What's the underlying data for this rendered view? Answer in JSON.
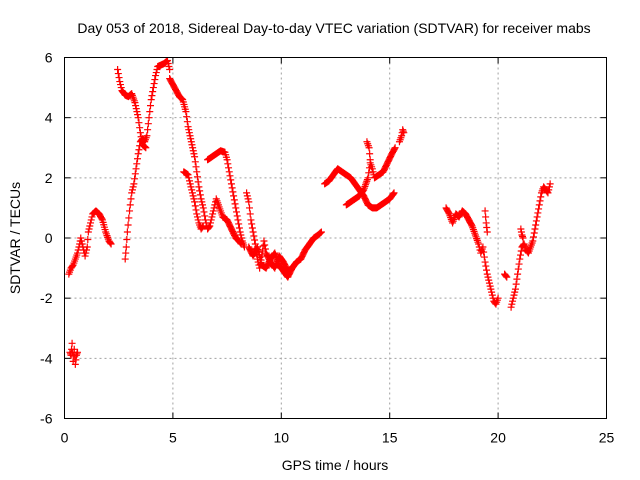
{
  "chart_data": {
    "type": "scatter",
    "title": "Day 053 of 2018, Sidereal Day-to-day VTEC variation (SDTVAR) for receiver mabs",
    "xlabel": "GPS time / hours",
    "ylabel": "SDTVAR / TECUs",
    "xlim": [
      0,
      25
    ],
    "ylim": [
      -6,
      6
    ],
    "xticks": [
      0,
      5,
      10,
      15,
      20,
      25
    ],
    "yticks": [
      -6,
      -4,
      -2,
      0,
      2,
      4,
      6
    ],
    "grid": true,
    "marker": "plus",
    "color": "#ff0000",
    "segments": [
      [
        [
          0.25,
          -3.8
        ],
        [
          0.3,
          -3.9
        ],
        [
          0.35,
          -3.5
        ],
        [
          0.4,
          -4.1
        ],
        [
          0.45,
          -3.7
        ],
        [
          0.5,
          -4.2
        ],
        [
          0.55,
          -3.9
        ],
        [
          0.6,
          -3.8
        ]
      ],
      [
        [
          0.2,
          -1.2
        ],
        [
          0.3,
          -1.0
        ],
        [
          0.4,
          -0.9
        ],
        [
          0.5,
          -0.7
        ],
        [
          0.6,
          -0.5
        ],
        [
          0.7,
          -0.2
        ],
        [
          0.75,
          0.0
        ],
        [
          0.85,
          -0.3
        ],
        [
          0.95,
          -0.6
        ],
        [
          1.05,
          -0.3
        ],
        [
          1.1,
          0.2
        ],
        [
          1.2,
          0.5
        ],
        [
          1.3,
          0.8
        ],
        [
          1.45,
          0.9
        ],
        [
          1.6,
          0.8
        ],
        [
          1.75,
          0.6
        ],
        [
          1.9,
          0.2
        ],
        [
          2.05,
          -0.1
        ],
        [
          2.15,
          -0.2
        ]
      ],
      [
        [
          2.8,
          -0.7
        ],
        [
          2.85,
          -0.3
        ],
        [
          2.9,
          0.2
        ],
        [
          3.0,
          0.9
        ],
        [
          3.1,
          1.5
        ],
        [
          3.2,
          1.8
        ],
        [
          3.3,
          2.3
        ],
        [
          3.4,
          2.8
        ],
        [
          3.5,
          3.2
        ],
        [
          3.6,
          3.3
        ],
        [
          3.7,
          3.2
        ],
        [
          3.8,
          3.4
        ],
        [
          3.9,
          4.0
        ],
        [
          4.0,
          4.6
        ],
        [
          4.1,
          5.0
        ],
        [
          4.2,
          5.4
        ],
        [
          4.3,
          5.7
        ],
        [
          4.45,
          5.75
        ],
        [
          4.6,
          5.8
        ],
        [
          4.75,
          5.9
        ],
        [
          4.85,
          5.6
        ]
      ],
      [
        [
          2.45,
          5.6
        ],
        [
          2.55,
          5.2
        ],
        [
          2.65,
          4.9
        ],
        [
          2.8,
          4.75
        ],
        [
          2.95,
          4.7
        ],
        [
          3.1,
          4.8
        ],
        [
          3.25,
          4.5
        ],
        [
          3.4,
          4.0
        ],
        [
          3.5,
          3.5
        ],
        [
          3.6,
          3.1
        ],
        [
          3.75,
          3.0
        ]
      ],
      [
        [
          4.85,
          5.3
        ],
        [
          5.0,
          5.1
        ],
        [
          5.15,
          4.9
        ],
        [
          5.3,
          4.7
        ],
        [
          5.45,
          4.6
        ],
        [
          5.6,
          4.2
        ],
        [
          5.7,
          3.7
        ],
        [
          5.85,
          3.2
        ],
        [
          6.0,
          2.7
        ],
        [
          6.1,
          2.2
        ],
        [
          6.2,
          1.7
        ],
        [
          6.3,
          1.3
        ],
        [
          6.4,
          1.0
        ],
        [
          6.5,
          0.6
        ],
        [
          6.6,
          0.3
        ],
        [
          6.7,
          0.4
        ],
        [
          6.8,
          0.7
        ],
        [
          6.9,
          1.0
        ],
        [
          7.0,
          1.3
        ],
        [
          7.1,
          1.1
        ],
        [
          7.2,
          0.9
        ],
        [
          7.3,
          0.7
        ],
        [
          7.5,
          0.6
        ],
        [
          7.7,
          0.3
        ],
        [
          7.9,
          0.0
        ],
        [
          8.05,
          -0.1
        ],
        [
          8.15,
          -0.2
        ]
      ],
      [
        [
          5.5,
          2.2
        ],
        [
          5.7,
          2.1
        ],
        [
          5.8,
          1.8
        ],
        [
          5.9,
          1.5
        ],
        [
          6.0,
          1.2
        ],
        [
          6.1,
          0.8
        ],
        [
          6.2,
          0.5
        ],
        [
          6.3,
          0.3
        ],
        [
          6.4,
          0.4
        ]
      ],
      [
        [
          6.6,
          2.6
        ],
        [
          6.8,
          2.7
        ],
        [
          7.0,
          2.8
        ],
        [
          7.2,
          2.9
        ],
        [
          7.4,
          2.85
        ],
        [
          7.5,
          2.6
        ],
        [
          7.6,
          2.2
        ],
        [
          7.7,
          1.8
        ],
        [
          7.8,
          1.4
        ],
        [
          7.9,
          1.0
        ],
        [
          8.0,
          0.6
        ],
        [
          8.1,
          0.2
        ],
        [
          8.2,
          -0.1
        ],
        [
          8.3,
          -0.3
        ]
      ],
      [
        [
          8.4,
          1.5
        ],
        [
          8.5,
          1.2
        ],
        [
          8.6,
          0.6
        ],
        [
          8.7,
          0.2
        ],
        [
          8.8,
          -0.2
        ],
        [
          8.9,
          -0.7
        ],
        [
          9.0,
          -1.0
        ],
        [
          9.1,
          -0.6
        ],
        [
          9.2,
          -0.1
        ],
        [
          9.3,
          -0.5
        ],
        [
          9.5,
          -0.8
        ],
        [
          9.7,
          -1.0
        ],
        [
          9.9,
          -0.6
        ],
        [
          10.1,
          -0.8
        ],
        [
          10.3,
          -1.1
        ],
        [
          10.5,
          -1.0
        ],
        [
          10.7,
          -0.8
        ],
        [
          10.9,
          -0.7
        ],
        [
          11.1,
          -0.4
        ],
        [
          11.3,
          -0.2
        ],
        [
          11.5,
          0.0
        ],
        [
          11.7,
          0.1
        ],
        [
          11.85,
          0.2
        ]
      ],
      [
        [
          8.5,
          -0.3
        ],
        [
          8.7,
          -0.6
        ],
        [
          8.9,
          -0.3
        ],
        [
          9.1,
          -0.9
        ],
        [
          9.3,
          -1.0
        ],
        [
          9.5,
          -0.7
        ],
        [
          9.7,
          -0.5
        ],
        [
          9.9,
          -0.9
        ],
        [
          10.1,
          -1.1
        ],
        [
          10.3,
          -1.3
        ],
        [
          10.5,
          -1.0
        ]
      ],
      [
        [
          12.0,
          1.8
        ],
        [
          12.2,
          1.9
        ],
        [
          12.4,
          2.1
        ],
        [
          12.6,
          2.3
        ],
        [
          12.8,
          2.2
        ],
        [
          13.0,
          2.1
        ],
        [
          13.2,
          2.0
        ],
        [
          13.4,
          1.8
        ],
        [
          13.6,
          1.6
        ],
        [
          13.8,
          1.4
        ],
        [
          14.0,
          1.1
        ],
        [
          14.2,
          1.0
        ],
        [
          14.4,
          1.0
        ],
        [
          14.6,
          1.1
        ],
        [
          14.8,
          1.2
        ],
        [
          15.0,
          1.3
        ],
        [
          15.2,
          1.5
        ]
      ],
      [
        [
          13.0,
          1.1
        ],
        [
          13.2,
          1.2
        ],
        [
          13.4,
          1.3
        ],
        [
          13.6,
          1.4
        ],
        [
          13.8,
          1.6
        ],
        [
          14.0,
          2.0
        ],
        [
          14.1,
          2.5
        ],
        [
          14.2,
          2.3
        ],
        [
          14.3,
          2.0
        ],
        [
          14.5,
          2.1
        ],
        [
          14.7,
          2.2
        ],
        [
          14.9,
          2.5
        ],
        [
          15.1,
          2.8
        ],
        [
          15.25,
          3.0
        ]
      ],
      [
        [
          13.95,
          3.2
        ],
        [
          14.05,
          3.0
        ],
        [
          14.1,
          2.6
        ]
      ],
      [
        [
          15.45,
          3.2
        ],
        [
          15.55,
          3.4
        ],
        [
          15.6,
          3.6
        ],
        [
          15.65,
          3.5
        ]
      ],
      [
        [
          17.6,
          1.0
        ],
        [
          17.75,
          0.8
        ],
        [
          17.9,
          0.5
        ],
        [
          18.05,
          0.8
        ],
        [
          18.2,
          0.7
        ],
        [
          18.35,
          0.9
        ],
        [
          18.5,
          0.8
        ],
        [
          18.65,
          0.6
        ],
        [
          18.8,
          0.4
        ],
        [
          18.95,
          0.1
        ],
        [
          19.1,
          -0.2
        ],
        [
          19.2,
          -0.5
        ],
        [
          19.3,
          -0.3
        ],
        [
          19.4,
          -0.8
        ],
        [
          19.5,
          -1.2
        ],
        [
          19.6,
          -1.5
        ],
        [
          19.7,
          -1.8
        ],
        [
          19.8,
          -2.1
        ],
        [
          19.9,
          -2.2
        ],
        [
          20.0,
          -2.0
        ]
      ],
      [
        [
          19.4,
          0.9
        ],
        [
          19.45,
          0.5
        ],
        [
          19.5,
          0.2
        ]
      ],
      [
        [
          20.3,
          -1.2
        ],
        [
          20.4,
          -1.3
        ]
      ],
      [
        [
          20.6,
          -2.3
        ],
        [
          20.7,
          -2.0
        ],
        [
          20.8,
          -1.7
        ],
        [
          20.9,
          -1.2
        ],
        [
          21.0,
          -0.7
        ],
        [
          21.1,
          -0.3
        ],
        [
          21.2,
          -0.2
        ],
        [
          21.3,
          -0.4
        ],
        [
          21.4,
          -0.5
        ],
        [
          21.5,
          -0.3
        ],
        [
          21.6,
          -0.1
        ],
        [
          21.7,
          0.3
        ],
        [
          21.8,
          0.7
        ],
        [
          21.9,
          1.1
        ],
        [
          22.0,
          1.5
        ],
        [
          22.1,
          1.7
        ],
        [
          22.2,
          1.6
        ],
        [
          22.3,
          1.5
        ],
        [
          22.4,
          1.8
        ]
      ],
      [
        [
          21.05,
          0.3
        ],
        [
          21.1,
          0.1
        ],
        [
          21.15,
          0.0
        ]
      ]
    ]
  }
}
